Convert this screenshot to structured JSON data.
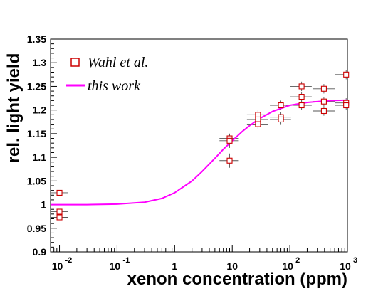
{
  "chart_data": {
    "type": "scatter",
    "xlabel": "xenon concentration (ppm)",
    "ylabel": "rel. light yield",
    "x_scale": "log",
    "xlim": [
      0.007,
      1000
    ],
    "ylim": [
      0.9,
      1.35
    ],
    "y_ticks": [
      "0.9",
      "0.95",
      "1",
      "1.05",
      "1.1",
      "1.15",
      "1.2",
      "1.25",
      "1.3",
      "1.35"
    ],
    "x_ticks": [
      {
        "base": "10",
        "exp": "-2",
        "value": 0.01
      },
      {
        "base": "10",
        "exp": "-1",
        "value": 0.1
      },
      {
        "base": "1",
        "exp": "",
        "value": 1
      },
      {
        "base": "10",
        "exp": "",
        "value": 10
      },
      {
        "base": "10",
        "exp": "2",
        "value": 100
      },
      {
        "base": "10",
        "exp": "3",
        "value": 1000
      }
    ],
    "grid": false,
    "legend": {
      "placement": "top-left",
      "entries": [
        {
          "label": "Wahl et al.",
          "marker": "open-square",
          "color": "#cc0000"
        },
        {
          "label": "this work",
          "marker": "line",
          "color": "#ff00ff"
        }
      ]
    },
    "series": [
      {
        "name": "Wahl et al.",
        "color": "#cc0000",
        "points": [
          {
            "x": 0.01,
            "y": 1.025,
            "xlo": 0.007,
            "xhi": 0.014,
            "ylo": 1.021,
            "yhi": 1.029
          },
          {
            "x": 0.01,
            "y": 0.985,
            "xlo": 0.007,
            "xhi": 0.014,
            "ylo": 0.979,
            "yhi": 0.991
          },
          {
            "x": 0.01,
            "y": 0.973,
            "xlo": 0.007,
            "xhi": 0.014,
            "ylo": 0.967,
            "yhi": 0.979
          },
          {
            "x": 9,
            "y": 1.14,
            "xlo": 6,
            "xhi": 13,
            "ylo": 1.13,
            "yhi": 1.15
          },
          {
            "x": 9,
            "y": 1.135,
            "xlo": 6,
            "xhi": 13,
            "ylo": 1.12,
            "yhi": 1.15
          },
          {
            "x": 9,
            "y": 1.093,
            "xlo": 6,
            "xhi": 13,
            "ylo": 1.078,
            "yhi": 1.108
          },
          {
            "x": 28,
            "y": 1.19,
            "xlo": 18,
            "xhi": 42,
            "ylo": 1.18,
            "yhi": 1.2
          },
          {
            "x": 28,
            "y": 1.18,
            "xlo": 18,
            "xhi": 42,
            "ylo": 1.17,
            "yhi": 1.19
          },
          {
            "x": 28,
            "y": 1.17,
            "xlo": 18,
            "xhi": 42,
            "ylo": 1.16,
            "yhi": 1.18
          },
          {
            "x": 70,
            "y": 1.21,
            "xlo": 45,
            "xhi": 105,
            "ylo": 1.2,
            "yhi": 1.22
          },
          {
            "x": 70,
            "y": 1.185,
            "xlo": 45,
            "xhi": 105,
            "ylo": 1.175,
            "yhi": 1.195
          },
          {
            "x": 70,
            "y": 1.18,
            "xlo": 45,
            "xhi": 105,
            "ylo": 1.17,
            "yhi": 1.19
          },
          {
            "x": 160,
            "y": 1.25,
            "xlo": 100,
            "xhi": 240,
            "ylo": 1.24,
            "yhi": 1.26
          },
          {
            "x": 160,
            "y": 1.228,
            "xlo": 100,
            "xhi": 240,
            "ylo": 1.218,
            "yhi": 1.238
          },
          {
            "x": 160,
            "y": 1.21,
            "xlo": 100,
            "xhi": 240,
            "ylo": 1.2,
            "yhi": 1.22
          },
          {
            "x": 390,
            "y": 1.245,
            "xlo": 250,
            "xhi": 600,
            "ylo": 1.235,
            "yhi": 1.255
          },
          {
            "x": 390,
            "y": 1.218,
            "xlo": 250,
            "xhi": 600,
            "ylo": 1.208,
            "yhi": 1.228
          },
          {
            "x": 390,
            "y": 1.198,
            "xlo": 250,
            "xhi": 600,
            "ylo": 1.188,
            "yhi": 1.208
          },
          {
            "x": 950,
            "y": 1.275,
            "xlo": 600,
            "xhi": 1000,
            "ylo": 1.265,
            "yhi": 1.285
          },
          {
            "x": 950,
            "y": 1.215,
            "xlo": 600,
            "xhi": 1000,
            "ylo": 1.205,
            "yhi": 1.225
          },
          {
            "x": 950,
            "y": 1.21,
            "xlo": 600,
            "xhi": 1000,
            "ylo": 1.2,
            "yhi": 1.22
          }
        ]
      },
      {
        "name": "this work",
        "color": "#ff00ff",
        "points": [
          {
            "x": 0.007,
            "y": 1.0
          },
          {
            "x": 0.03,
            "y": 1.0
          },
          {
            "x": 0.1,
            "y": 1.001
          },
          {
            "x": 0.3,
            "y": 1.005
          },
          {
            "x": 0.6,
            "y": 1.013
          },
          {
            "x": 1,
            "y": 1.025
          },
          {
            "x": 2,
            "y": 1.05
          },
          {
            "x": 3,
            "y": 1.07
          },
          {
            "x": 5,
            "y": 1.098
          },
          {
            "x": 7,
            "y": 1.117
          },
          {
            "x": 10,
            "y": 1.135
          },
          {
            "x": 15,
            "y": 1.155
          },
          {
            "x": 20,
            "y": 1.167
          },
          {
            "x": 30,
            "y": 1.182
          },
          {
            "x": 50,
            "y": 1.197
          },
          {
            "x": 100,
            "y": 1.21
          },
          {
            "x": 200,
            "y": 1.216
          },
          {
            "x": 500,
            "y": 1.22
          },
          {
            "x": 1000,
            "y": 1.221
          }
        ]
      }
    ]
  }
}
